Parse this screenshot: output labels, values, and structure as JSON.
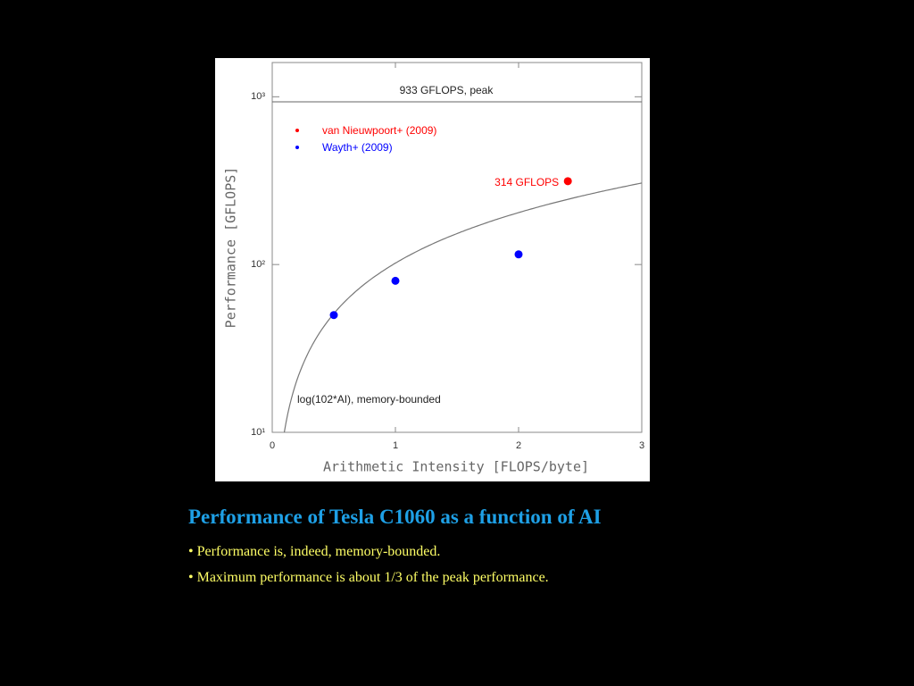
{
  "chart_data": {
    "type": "scatter",
    "xlabel": "Arithmetic Intensity [FLOPS/byte]",
    "ylabel": "Performance [GFLOPS]",
    "xlim": [
      0,
      3
    ],
    "xticks": [
      0,
      1,
      2,
      3
    ],
    "ylim": [
      10,
      1600
    ],
    "ylog": true,
    "yticks": [
      {
        "value": 10,
        "label": "10¹"
      },
      {
        "value": 100,
        "label": "10²"
      },
      {
        "value": 1000,
        "label": "10³"
      }
    ],
    "legend": "upper left",
    "series": [
      {
        "name": "van Nieuwpoort+ (2009)",
        "color": "#ff0000",
        "x": [
          2.4
        ],
        "values": [
          314
        ],
        "value_labels": [
          "314 GFLOPS"
        ]
      },
      {
        "name": "Wayth+ (2009)",
        "color": "#0000ff",
        "x": [
          0.5,
          1,
          2
        ],
        "values": [
          50,
          80,
          115
        ]
      }
    ],
    "peak": {
      "value": 933,
      "label": "933 GFLOPS, peak"
    },
    "memory_bound": {
      "slope": 102,
      "label": "log(102*AI), memory-bounded"
    }
  },
  "slide": {
    "heading": "Performance of Tesla C1060 as a function of AI",
    "bullets": [
      "• Performance is, indeed, memory-bounded.",
      "• Maximum  performance is about 1/3 of the peak performance."
    ]
  }
}
